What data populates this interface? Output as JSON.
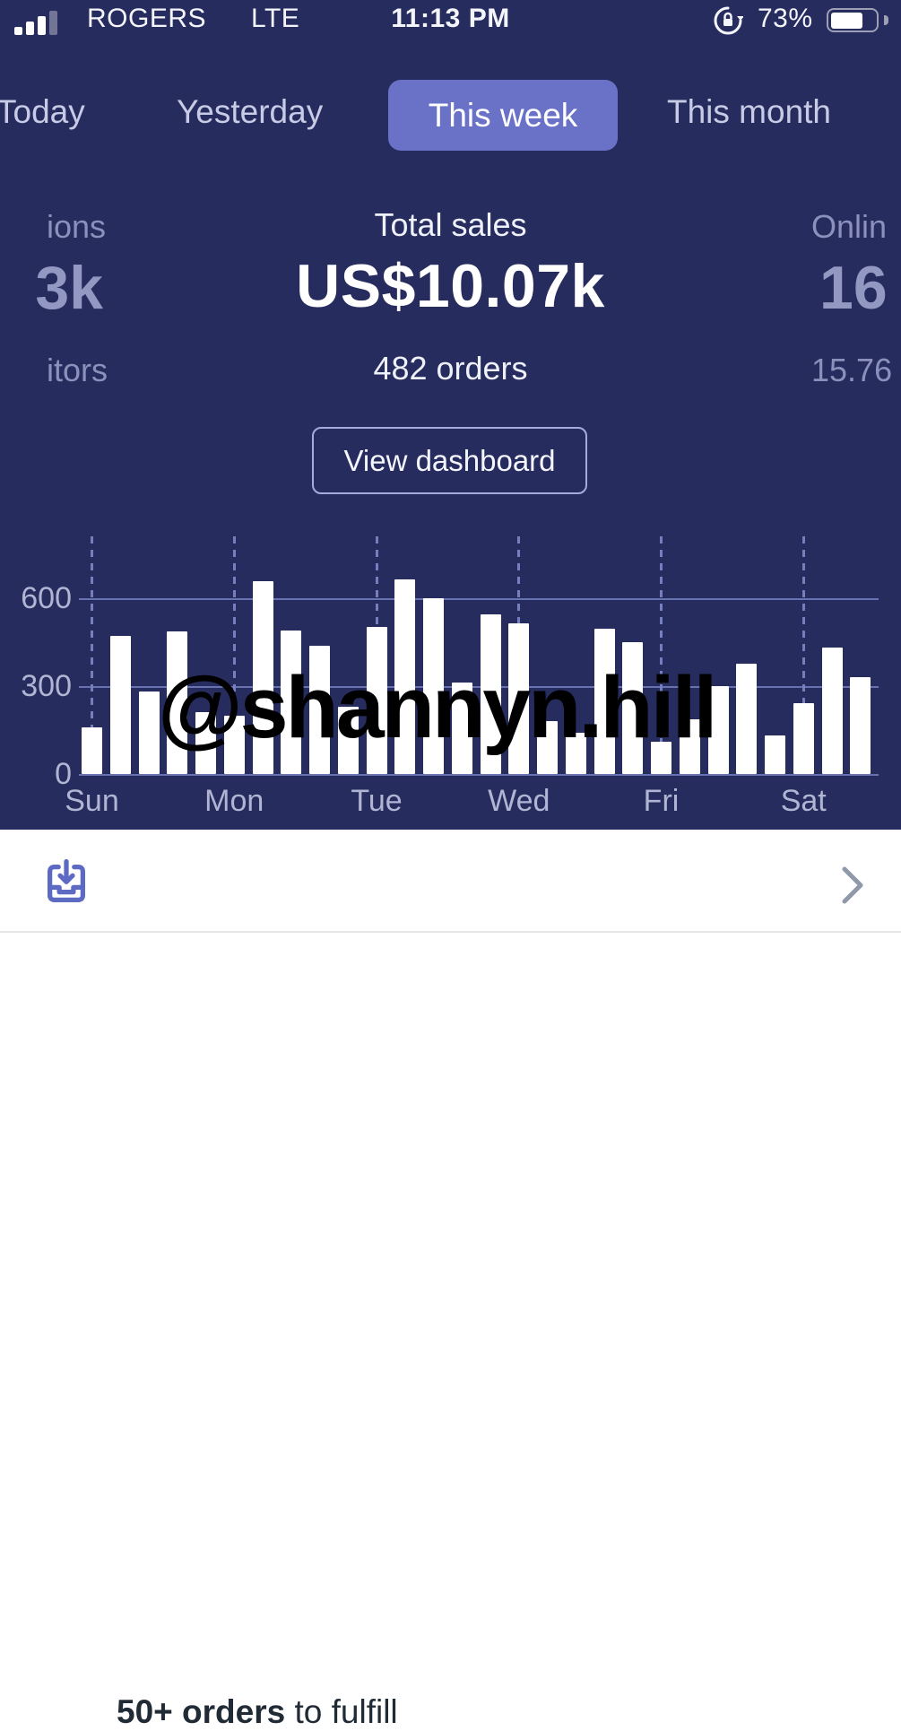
{
  "status_bar": {
    "carrier": "ROGERS",
    "network": "LTE",
    "time": "11:13 PM",
    "battery_percent": "73%",
    "battery_level": 0.73,
    "icons": [
      "signal-bars-icon",
      "rotation-lock-icon",
      "battery-icon"
    ]
  },
  "tabs": {
    "items": [
      {
        "label": "Today",
        "selected": false
      },
      {
        "label": "Yesterday",
        "selected": false
      },
      {
        "label": "This week",
        "selected": true
      },
      {
        "label": "This month",
        "selected": false
      }
    ]
  },
  "metrics": {
    "left_partial": {
      "title_fragment": "ions",
      "value_fragment": "3k",
      "subtitle_fragment": "itors"
    },
    "center": {
      "title": "Total sales",
      "value": "US$10.07k",
      "subtitle": "482 orders"
    },
    "right_partial": {
      "title_fragment": "Onlin",
      "value_fragment": "16",
      "subtitle_fragment": "15.76"
    }
  },
  "dashboard_button": {
    "label": "View dashboard"
  },
  "chart_data": {
    "type": "bar",
    "title": "",
    "xlabel": "",
    "ylabel": "",
    "ylim": [
      0,
      810
    ],
    "ytick_labels": [
      "0",
      "300",
      "600"
    ],
    "yticks": [
      0,
      300,
      600
    ],
    "grid": "horizontal solid lines at 300 and 600; dashed vertical line at each labeled day tick",
    "legend": "none",
    "bar_color": "#ffffff",
    "values": [
      160,
      470,
      280,
      485,
      210,
      200,
      655,
      490,
      437,
      230,
      500,
      663,
      600,
      310,
      545,
      513,
      180,
      140,
      495,
      450,
      110,
      185,
      300,
      375,
      130,
      240,
      430,
      330
    ],
    "day_ticks": [
      {
        "index": 0,
        "label": "Sun"
      },
      {
        "index": 5,
        "label": "Mon"
      },
      {
        "index": 10,
        "label": "Tue"
      },
      {
        "index": 15,
        "label": "Wed"
      },
      {
        "index": 20,
        "label": "Fri"
      },
      {
        "index": 25,
        "label": "Sat"
      }
    ]
  },
  "watermark": {
    "text": "@shannyn.hill",
    "color": "#000000"
  },
  "orders_row": {
    "bold_text": "50+ orders",
    "rest_text": " to fulfill",
    "icon": "orders-tray-icon",
    "chevron": "chevron-right-icon"
  },
  "colors": {
    "background_navy": "#272c5e",
    "selected_tab": "#6a72c8",
    "tab_text": "#c7cbe5",
    "dimmed_metric": "#8b91bb",
    "gridline": "#767fc0",
    "axis_label": "#b0b5d3",
    "bar": "#ffffff",
    "orders_icon": "#5c6ac4",
    "orders_text": "#212b36",
    "chevron": "#8f99a9"
  }
}
